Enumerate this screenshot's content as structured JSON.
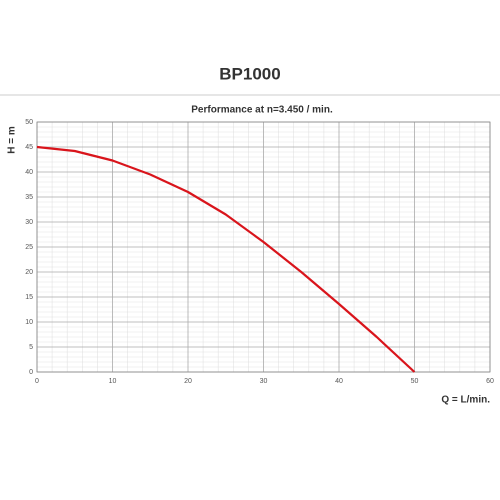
{
  "chart_data": {
    "type": "line",
    "title": "BP1000",
    "subtitle": "Performance at n=3.450 / min.",
    "x_label": "Q = L/min.",
    "y_label": "H = m",
    "x": [
      0,
      5,
      10,
      15,
      20,
      25,
      30,
      35,
      40,
      45,
      50
    ],
    "series": [
      {
        "name": "BP1000",
        "color": "#d9141b",
        "values": [
          45,
          44.2,
          42.3,
          39.5,
          36,
          31.5,
          26,
          20,
          13.6,
          7,
          0
        ]
      }
    ],
    "xlim": [
      0,
      60
    ],
    "xticks": [
      0,
      10,
      20,
      30,
      40,
      50,
      60
    ],
    "ylim": [
      0,
      50
    ],
    "yticks": [
      0,
      5,
      10,
      15,
      20,
      25,
      30,
      35,
      40,
      45,
      50
    ],
    "grid": true,
    "minor_grid": true
  }
}
